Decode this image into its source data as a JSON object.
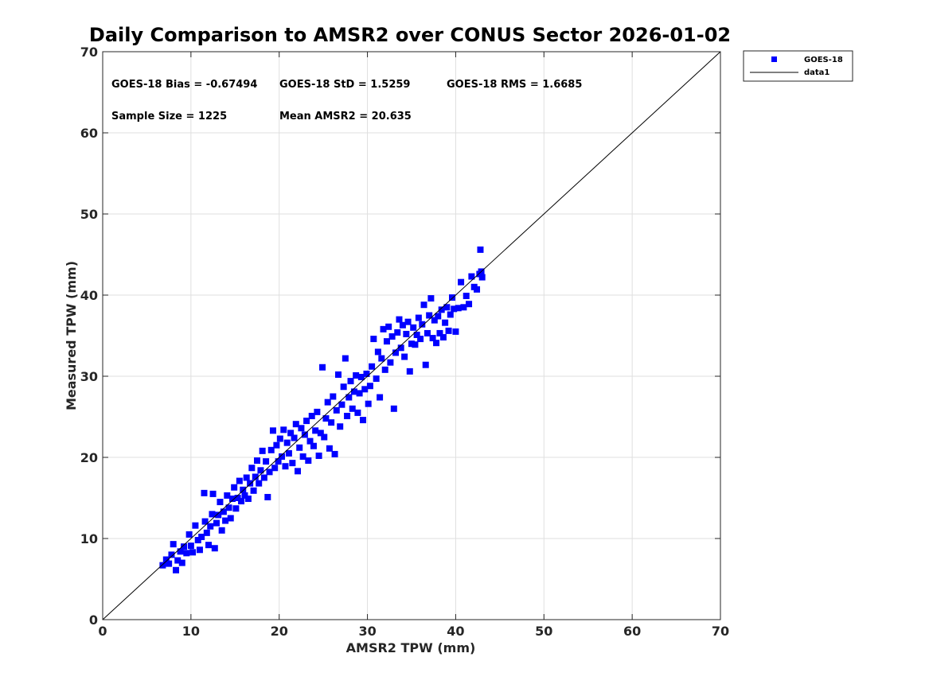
{
  "chart_data": {
    "type": "scatter",
    "title": "Daily Comparison to AMSR2 over CONUS Sector 2026-01-02",
    "xlabel": "AMSR2 TPW (mm)",
    "ylabel": "Measured TPW (mm)",
    "xlim": [
      0,
      70
    ],
    "ylim": [
      0,
      70
    ],
    "xticks": [
      "0",
      "10",
      "20",
      "30",
      "40",
      "50",
      "60",
      "70"
    ],
    "yticks": [
      "0",
      "10",
      "20",
      "30",
      "40",
      "50",
      "60",
      "70"
    ],
    "grid": true,
    "legend_position": "outside-top-right",
    "annotations": {
      "bias": "GOES-18 Bias = -0.67494",
      "std": "GOES-18 StD = 1.5259",
      "rms": "GOES-18 RMS = 1.6685",
      "sample": "Sample Size = 1225",
      "mean": "Mean AMSR2 = 20.635"
    },
    "series": [
      {
        "name": "GOES-18",
        "marker": "square",
        "color": "#0000ff",
        "points": [
          [
            6.8,
            6.7
          ],
          [
            7.2,
            7.4
          ],
          [
            7.5,
            6.9
          ],
          [
            7.8,
            8.0
          ],
          [
            8.0,
            9.3
          ],
          [
            8.3,
            6.1
          ],
          [
            8.5,
            7.3
          ],
          [
            8.8,
            8.4
          ],
          [
            9.0,
            7.0
          ],
          [
            9.2,
            9.0
          ],
          [
            9.5,
            8.2
          ],
          [
            9.8,
            10.5
          ],
          [
            10.0,
            9.1
          ],
          [
            10.2,
            8.3
          ],
          [
            10.5,
            11.6
          ],
          [
            10.8,
            9.8
          ],
          [
            11.0,
            8.6
          ],
          [
            11.2,
            10.2
          ],
          [
            11.5,
            15.6
          ],
          [
            11.6,
            12.1
          ],
          [
            11.8,
            10.7
          ],
          [
            12.0,
            9.2
          ],
          [
            12.2,
            11.5
          ],
          [
            12.4,
            13.0
          ],
          [
            12.5,
            15.5
          ],
          [
            12.7,
            8.8
          ],
          [
            12.9,
            11.9
          ],
          [
            13.1,
            12.9
          ],
          [
            13.3,
            14.5
          ],
          [
            13.5,
            11.0
          ],
          [
            13.7,
            13.3
          ],
          [
            13.9,
            12.2
          ],
          [
            14.1,
            15.3
          ],
          [
            14.3,
            13.8
          ],
          [
            14.5,
            12.5
          ],
          [
            14.7,
            14.9
          ],
          [
            14.9,
            16.3
          ],
          [
            15.1,
            13.7
          ],
          [
            15.3,
            15.0
          ],
          [
            15.5,
            17.1
          ],
          [
            15.7,
            14.6
          ],
          [
            15.9,
            16.0
          ],
          [
            16.1,
            15.3
          ],
          [
            16.3,
            17.5
          ],
          [
            16.5,
            14.9
          ],
          [
            16.7,
            16.8
          ],
          [
            16.9,
            18.7
          ],
          [
            17.1,
            15.9
          ],
          [
            17.3,
            17.6
          ],
          [
            17.5,
            19.6
          ],
          [
            17.7,
            16.8
          ],
          [
            17.9,
            18.4
          ],
          [
            18.1,
            20.8
          ],
          [
            18.3,
            17.5
          ],
          [
            18.5,
            19.5
          ],
          [
            18.7,
            15.1
          ],
          [
            18.9,
            18.2
          ],
          [
            19.1,
            20.9
          ],
          [
            19.3,
            23.3
          ],
          [
            19.5,
            18.7
          ],
          [
            19.7,
            21.5
          ],
          [
            19.9,
            19.5
          ],
          [
            20.1,
            22.3
          ],
          [
            20.3,
            20.1
          ],
          [
            20.5,
            23.4
          ],
          [
            20.7,
            18.9
          ],
          [
            20.9,
            21.8
          ],
          [
            21.1,
            20.5
          ],
          [
            21.3,
            23.0
          ],
          [
            21.5,
            19.3
          ],
          [
            21.7,
            22.4
          ],
          [
            21.9,
            24.1
          ],
          [
            22.1,
            18.3
          ],
          [
            22.3,
            21.2
          ],
          [
            22.5,
            23.6
          ],
          [
            22.7,
            20.1
          ],
          [
            22.9,
            22.8
          ],
          [
            23.1,
            24.5
          ],
          [
            23.3,
            19.6
          ],
          [
            23.5,
            22.0
          ],
          [
            23.7,
            25.1
          ],
          [
            23.9,
            21.4
          ],
          [
            24.1,
            23.3
          ],
          [
            24.3,
            25.6
          ],
          [
            24.5,
            20.2
          ],
          [
            24.7,
            23.0
          ],
          [
            24.9,
            31.1
          ],
          [
            25.1,
            22.5
          ],
          [
            25.3,
            24.8
          ],
          [
            25.5,
            26.8
          ],
          [
            25.7,
            21.1
          ],
          [
            25.9,
            24.3
          ],
          [
            26.1,
            27.5
          ],
          [
            26.3,
            20.4
          ],
          [
            26.5,
            25.8
          ],
          [
            26.7,
            30.2
          ],
          [
            26.9,
            23.8
          ],
          [
            27.1,
            26.5
          ],
          [
            27.3,
            28.7
          ],
          [
            27.5,
            32.2
          ],
          [
            27.7,
            25.1
          ],
          [
            27.9,
            27.4
          ],
          [
            28.1,
            29.4
          ],
          [
            28.3,
            26.0
          ],
          [
            28.5,
            28.1
          ],
          [
            28.7,
            30.1
          ],
          [
            28.9,
            25.5
          ],
          [
            29.1,
            27.9
          ],
          [
            29.3,
            29.9
          ],
          [
            29.5,
            24.6
          ],
          [
            29.7,
            28.4
          ],
          [
            29.9,
            30.3
          ],
          [
            30.1,
            26.6
          ],
          [
            30.3,
            28.8
          ],
          [
            30.5,
            31.2
          ],
          [
            30.7,
            34.6
          ],
          [
            31.0,
            29.7
          ],
          [
            31.2,
            33.0
          ],
          [
            31.4,
            27.4
          ],
          [
            31.6,
            32.2
          ],
          [
            31.8,
            35.8
          ],
          [
            32.0,
            30.8
          ],
          [
            32.2,
            34.3
          ],
          [
            32.4,
            36.1
          ],
          [
            32.6,
            31.7
          ],
          [
            32.8,
            34.9
          ],
          [
            33.0,
            26.0
          ],
          [
            33.2,
            32.9
          ],
          [
            33.4,
            35.4
          ],
          [
            33.6,
            37.0
          ],
          [
            33.8,
            33.5
          ],
          [
            34.0,
            36.3
          ],
          [
            34.2,
            32.4
          ],
          [
            34.4,
            35.2
          ],
          [
            34.6,
            36.7
          ],
          [
            34.8,
            30.6
          ],
          [
            35.0,
            34.0
          ],
          [
            35.2,
            36.0
          ],
          [
            35.4,
            33.9
          ],
          [
            35.6,
            35.1
          ],
          [
            35.8,
            37.2
          ],
          [
            36.0,
            34.6
          ],
          [
            36.2,
            36.4
          ],
          [
            36.4,
            38.8
          ],
          [
            36.6,
            31.4
          ],
          [
            36.8,
            35.3
          ],
          [
            37.0,
            37.5
          ],
          [
            37.2,
            39.6
          ],
          [
            37.4,
            34.7
          ],
          [
            37.6,
            36.9
          ],
          [
            37.8,
            34.1
          ],
          [
            38.0,
            37.4
          ],
          [
            38.2,
            35.3
          ],
          [
            38.4,
            38.2
          ],
          [
            38.6,
            34.8
          ],
          [
            38.8,
            36.6
          ],
          [
            39.0,
            38.5
          ],
          [
            39.2,
            35.6
          ],
          [
            39.4,
            37.6
          ],
          [
            39.6,
            39.7
          ],
          [
            39.8,
            38.3
          ],
          [
            40.0,
            35.5
          ],
          [
            40.3,
            38.4
          ],
          [
            40.6,
            41.6
          ],
          [
            40.9,
            38.5
          ],
          [
            41.2,
            39.9
          ],
          [
            41.5,
            38.9
          ],
          [
            41.8,
            42.3
          ],
          [
            42.1,
            41.0
          ],
          [
            42.4,
            40.7
          ],
          [
            42.7,
            42.6
          ],
          [
            42.8,
            45.6
          ],
          [
            42.9,
            42.9
          ],
          [
            43.0,
            42.2
          ]
        ]
      },
      {
        "name": "data1",
        "line": [
          [
            0,
            0
          ],
          [
            70,
            70
          ]
        ],
        "color": "#000000"
      }
    ]
  }
}
